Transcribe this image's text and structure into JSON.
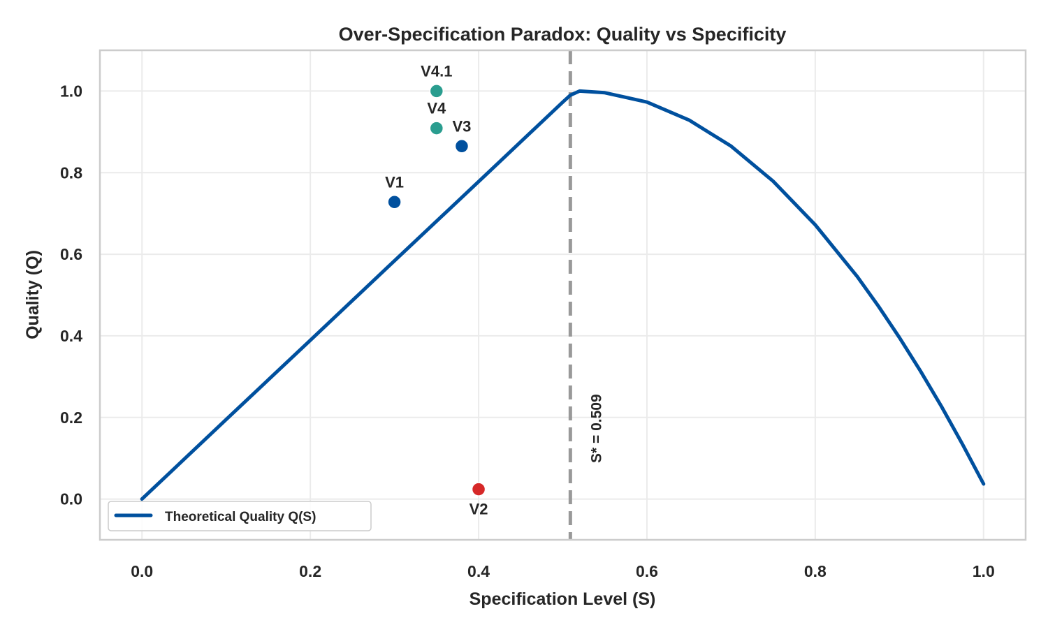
{
  "chart_data": {
    "type": "line",
    "title": "Over-Specification Paradox: Quality vs Specificity",
    "xlabel": "Specification Level (S)",
    "ylabel": "Quality (Q)",
    "xlim": [
      -0.05,
      1.05
    ],
    "ylim": [
      -0.1,
      1.1
    ],
    "xticks": [
      0.0,
      0.2,
      0.4,
      0.6,
      0.8,
      1.0
    ],
    "xtick_labels": [
      "0.0",
      "0.2",
      "0.4",
      "0.6",
      "0.8",
      "1.0"
    ],
    "yticks": [
      0.0,
      0.2,
      0.4,
      0.6,
      0.8,
      1.0
    ],
    "ytick_labels": [
      "0.0",
      "0.2",
      "0.4",
      "0.6",
      "0.8",
      "1.0"
    ],
    "grid": true,
    "legend": {
      "placement": "lower-left",
      "entries": [
        "Theoretical Quality Q(S)"
      ]
    },
    "series": [
      {
        "name": "Theoretical Quality Q(S)",
        "color": "#00509e",
        "x": [
          0,
          0.1,
          0.2,
          0.3,
          0.4,
          0.5,
          0.509,
          0.52,
          0.55,
          0.6,
          0.65,
          0.7,
          0.75,
          0.8,
          0.85,
          0.875,
          0.9,
          0.925,
          0.95,
          0.975,
          1.0
        ],
        "y": [
          0,
          0.195,
          0.389,
          0.584,
          0.778,
          0.973,
          0.99,
          1.0,
          0.996,
          0.973,
          0.929,
          0.865,
          0.779,
          0.672,
          0.545,
          0.473,
          0.396,
          0.314,
          0.227,
          0.134,
          0.037
        ]
      }
    ],
    "points": [
      {
        "label": "V1",
        "x": 0.3,
        "y": 0.728,
        "color": "#00509e",
        "label_pos": "above"
      },
      {
        "label": "V2",
        "x": 0.4,
        "y": 0.024,
        "color": "#d62828",
        "label_pos": "below"
      },
      {
        "label": "V3",
        "x": 0.38,
        "y": 0.865,
        "color": "#00509e",
        "label_pos": "above"
      },
      {
        "label": "V4",
        "x": 0.35,
        "y": 0.909,
        "color": "#2a9d8f",
        "label_pos": "above"
      },
      {
        "label": "V4.1",
        "x": 0.35,
        "y": 1.0,
        "color": "#2a9d8f",
        "label_pos": "above"
      }
    ],
    "vline": {
      "x": 0.509,
      "color": "#999999",
      "label": "S* = 0.509"
    }
  }
}
